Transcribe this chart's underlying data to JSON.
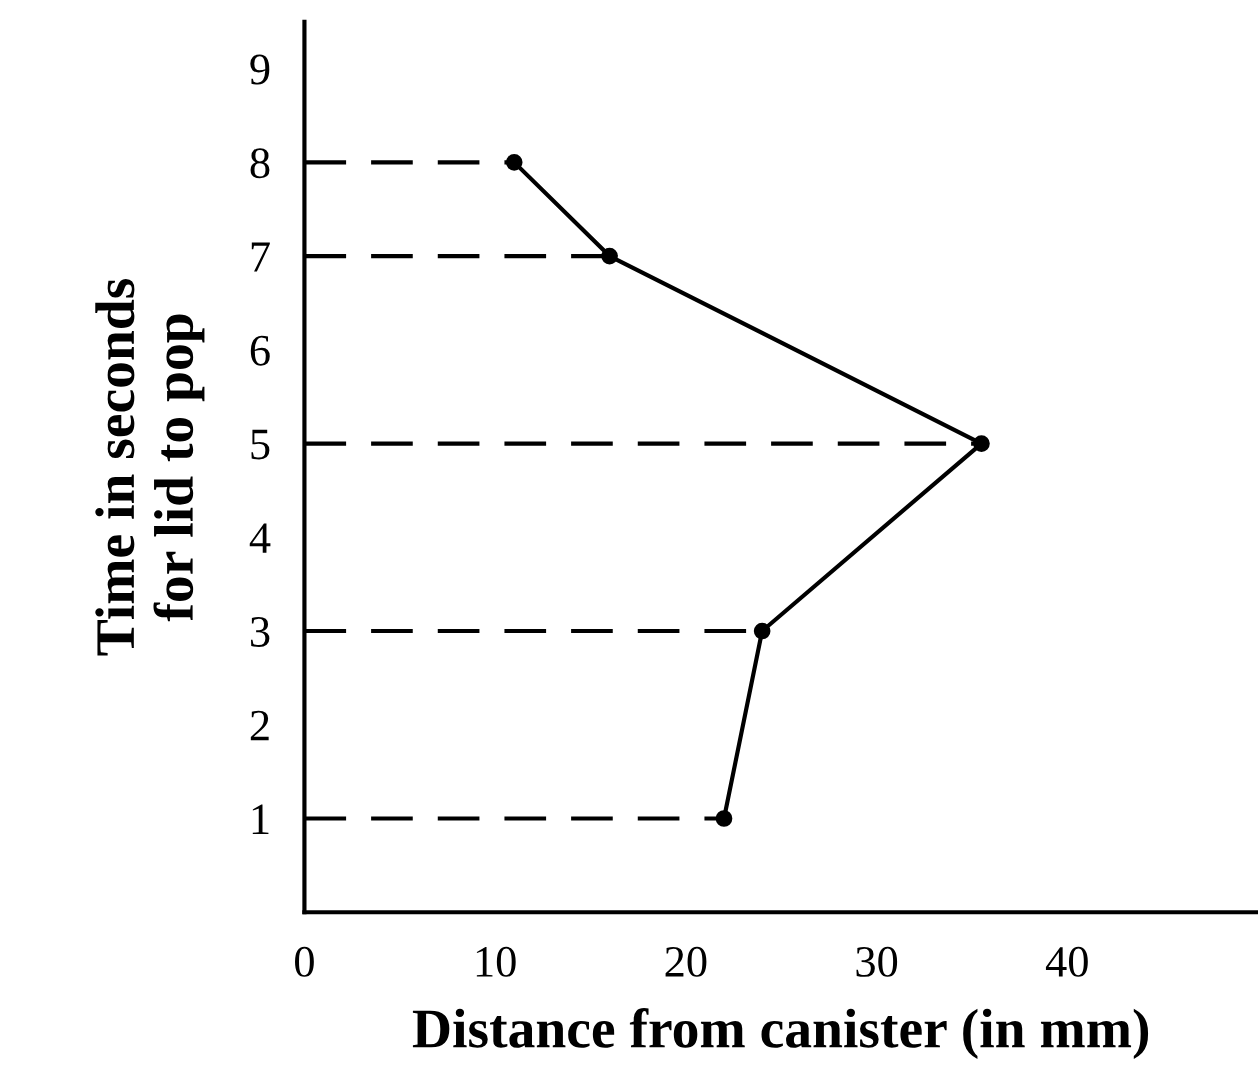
{
  "chart_data": {
    "type": "line",
    "xlabel": "Distance from canister (in mm)",
    "ylabel": "Time in seconds\nfor lid to pop",
    "xlim": [
      0,
      50
    ],
    "ylim": [
      0,
      9.5
    ],
    "xticks": [
      0,
      10,
      20,
      30,
      40
    ],
    "yticks": [
      1,
      2,
      3,
      4,
      5,
      6,
      7,
      8,
      9
    ],
    "grid": false,
    "legend": false,
    "series": [
      {
        "color": "#000000",
        "x": [
          22,
          24,
          35.5,
          16,
          11
        ],
        "values": [
          1,
          3,
          5,
          7,
          8
        ],
        "marker": "circle",
        "line_style": "solid"
      },
      {
        "color": "#000000",
        "x": [
          0,
          22
        ],
        "values": [
          1,
          1
        ],
        "marker": "none",
        "line_style": "dashed"
      },
      {
        "color": "#000000",
        "x": [
          0,
          24
        ],
        "values": [
          3,
          3
        ],
        "marker": "none",
        "line_style": "dashed"
      },
      {
        "color": "#000000",
        "x": [
          0,
          35.5
        ],
        "values": [
          5,
          5
        ],
        "marker": "none",
        "line_style": "dashed"
      },
      {
        "color": "#000000",
        "x": [
          0,
          16
        ],
        "values": [
          7,
          7
        ],
        "marker": "none",
        "line_style": "dashed"
      },
      {
        "color": "#000000",
        "x": [
          0,
          11
        ],
        "values": [
          8,
          8
        ],
        "marker": "none",
        "line_style": "dashed"
      }
    ]
  }
}
